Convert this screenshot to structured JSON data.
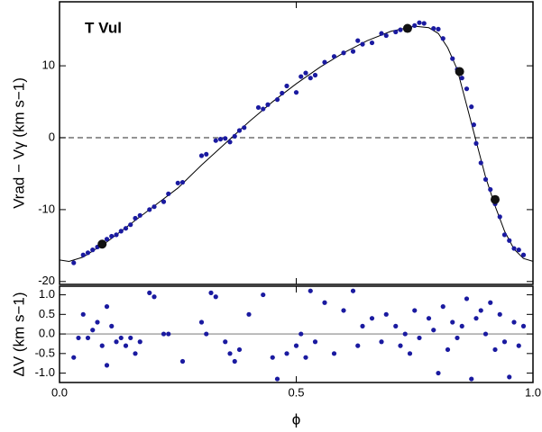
{
  "chart_data": [
    {
      "type": "scatter",
      "annotation": "T Vul",
      "y_label": "Vrad − Vγ (km s−1)",
      "xlim": [
        0,
        1
      ],
      "xticks": [
        0,
        0.5,
        1
      ],
      "ylim": [
        -20.4,
        18.9
      ],
      "yticks": [
        -20,
        -10,
        0,
        10
      ],
      "hlines": [
        {
          "value": 0,
          "style": "dashed",
          "color": "#555555"
        }
      ],
      "series": [
        {
          "type": "line",
          "color": "#000000",
          "x": [
            0,
            0.02,
            0.05,
            0.1,
            0.15,
            0.2,
            0.25,
            0.3,
            0.35,
            0.4,
            0.45,
            0.5,
            0.55,
            0.6,
            0.65,
            0.7,
            0.75,
            0.78,
            0.8,
            0.82,
            0.84,
            0.86,
            0.88,
            0.9,
            0.92,
            0.94,
            0.96,
            0.98,
            1
          ],
          "values": [
            -17.0,
            -17.2,
            -16.6,
            -14.5,
            -12.0,
            -9.5,
            -7.0,
            -3.8,
            -0.8,
            2.2,
            5.0,
            7.5,
            9.8,
            11.8,
            13.5,
            14.8,
            15.5,
            15.3,
            14.5,
            12.5,
            9.5,
            4.5,
            -0.5,
            -5.5,
            -9.5,
            -13.0,
            -15.5,
            -16.8,
            -17.2
          ]
        },
        {
          "type": "scatter",
          "color": "#1a1aa0",
          "marker_size": 2.6,
          "x": [
            0.03,
            0.05,
            0.06,
            0.07,
            0.08,
            0.09,
            0.1,
            0.11,
            0.12,
            0.13,
            0.14,
            0.15,
            0.16,
            0.17,
            0.19,
            0.2,
            0.22,
            0.23,
            0.25,
            0.26,
            0.3,
            0.31,
            0.33,
            0.34,
            0.35,
            0.36,
            0.37,
            0.38,
            0.39,
            0.42,
            0.43,
            0.44,
            0.46,
            0.47,
            0.48,
            0.5,
            0.51,
            0.52,
            0.53,
            0.54,
            0.56,
            0.58,
            0.6,
            0.62,
            0.63,
            0.64,
            0.66,
            0.68,
            0.69,
            0.71,
            0.72,
            0.74,
            0.75,
            0.76,
            0.77,
            0.79,
            0.8,
            0.81,
            0.83,
            0.84,
            0.85,
            0.86,
            0.87,
            0.875,
            0.88,
            0.89,
            0.9,
            0.91,
            0.92,
            0.93,
            0.94,
            0.95,
            0.96,
            0.97,
            0.98
          ],
          "values": [
            -17.4,
            -16.3,
            -16.0,
            -15.6,
            -15.2,
            -14.9,
            -14.1,
            -13.7,
            -13.5,
            -13.0,
            -12.6,
            -12.1,
            -11.2,
            -10.8,
            -10.0,
            -9.6,
            -8.9,
            -7.8,
            -6.3,
            -6.2,
            -2.5,
            -2.3,
            -0.4,
            -0.2,
            -0.1,
            -0.6,
            0.2,
            1.0,
            1.4,
            4.2,
            4.0,
            4.6,
            5.3,
            6.2,
            7.2,
            6.3,
            8.5,
            9.0,
            8.3,
            8.7,
            10.5,
            11.3,
            11.8,
            12.0,
            13.5,
            13.0,
            13.2,
            14.5,
            14.2,
            14.7,
            15.0,
            15.3,
            15.6,
            16.0,
            15.9,
            15.2,
            15.1,
            13.8,
            11.0,
            9.5,
            8.3,
            6.8,
            4.3,
            1.8,
            -0.8,
            -3.5,
            -5.8,
            -7.2,
            -9.2,
            -11.0,
            -13.5,
            -14.3,
            -15.4,
            -15.6,
            -16.3
          ]
        },
        {
          "type": "scatter",
          "color": "#111111",
          "marker_size": 5,
          "x": [
            0.09,
            0.735,
            0.845,
            0.92
          ],
          "values": [
            -14.8,
            15.2,
            9.2,
            -8.6
          ]
        }
      ]
    },
    {
      "type": "scatter",
      "y_label": "ΔV (km s−1)",
      "x_label": "ϕ",
      "xlim": [
        0,
        1
      ],
      "xticks": [
        {
          "value": 0,
          "label": "0.0"
        },
        0.5,
        {
          "value": 1,
          "label": "1.0"
        }
      ],
      "ylim": [
        -1.24,
        1.22
      ],
      "yticks": [
        {
          "value": -1,
          "label": "-1.0"
        },
        -0.5,
        {
          "value": 0,
          "label": "0.0"
        },
        0.5,
        {
          "value": 1,
          "label": "1.0"
        }
      ],
      "hlines": [
        {
          "value": 0,
          "style": "solid",
          "color": "#888888"
        }
      ],
      "series": [
        {
          "type": "scatter",
          "color": "#1a1aa0",
          "marker_size": 2.6,
          "x": [
            0.03,
            0.04,
            0.05,
            0.06,
            0.07,
            0.08,
            0.09,
            0.1,
            0.1,
            0.11,
            0.12,
            0.13,
            0.14,
            0.15,
            0.16,
            0.17,
            0.19,
            0.2,
            0.22,
            0.23,
            0.26,
            0.3,
            0.31,
            0.32,
            0.33,
            0.35,
            0.36,
            0.37,
            0.38,
            0.4,
            0.43,
            0.45,
            0.46,
            0.48,
            0.5,
            0.51,
            0.52,
            0.53,
            0.54,
            0.56,
            0.58,
            0.6,
            0.62,
            0.63,
            0.64,
            0.66,
            0.68,
            0.69,
            0.71,
            0.72,
            0.73,
            0.74,
            0.75,
            0.76,
            0.78,
            0.79,
            0.8,
            0.81,
            0.82,
            0.83,
            0.84,
            0.85,
            0.86,
            0.87,
            0.88,
            0.89,
            0.9,
            0.91,
            0.92,
            0.93,
            0.94,
            0.95,
            0.96,
            0.97,
            0.98
          ],
          "values": [
            -0.6,
            -0.1,
            0.5,
            -0.1,
            0.1,
            0.3,
            -0.3,
            0.7,
            -0.8,
            0.2,
            -0.2,
            -0.1,
            -0.3,
            -0.1,
            -0.5,
            -0.2,
            1.05,
            0.95,
            0.0,
            0.0,
            -0.7,
            0.3,
            0.0,
            1.05,
            0.95,
            -0.2,
            -0.5,
            -0.7,
            -0.4,
            0.5,
            1.0,
            -0.6,
            -1.15,
            -0.5,
            -0.3,
            0.0,
            -0.6,
            1.1,
            -0.2,
            0.8,
            -0.5,
            0.6,
            1.1,
            -0.3,
            0.2,
            0.4,
            -0.2,
            0.5,
            0.2,
            -0.3,
            0.0,
            -0.5,
            0.6,
            -0.1,
            0.4,
            0.1,
            -1.0,
            0.7,
            -0.4,
            0.3,
            -0.1,
            0.2,
            0.9,
            -1.15,
            0.4,
            0.6,
            0.0,
            0.8,
            -0.4,
            0.5,
            -0.2,
            -1.1,
            0.3,
            -0.3,
            0.2
          ]
        }
      ]
    }
  ]
}
